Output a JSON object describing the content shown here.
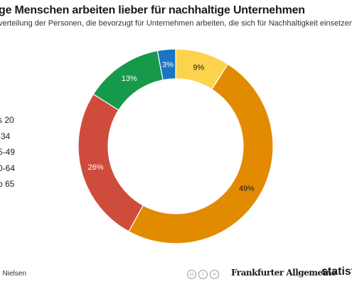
{
  "header": {
    "title": "ge Menschen arbeiten lieber für nachhaltige Unternehmen",
    "subtitle": "verteilung der Personen, die bevorzugt für Unternehmen arbeiten, die sich für Nachhaltigkeit einsetzen"
  },
  "footer": {
    "source": ": Nielsen",
    "cc_icons": [
      "cc-icon",
      "by-icon",
      "equals-icon"
    ],
    "faz_logo": "Frankfurter Allgemeine",
    "statista_logo": "statist"
  },
  "chart_data": {
    "type": "pie",
    "style": "donut",
    "title": "ge Menschen arbeiten lieber für nachhaltige Unternehmen",
    "categories": [
      "s 20",
      "-34",
      "5-49",
      "0-64",
      "b 65"
    ],
    "slices": [
      {
        "label": "9%",
        "value": 9,
        "color": "#fcd34d"
      },
      {
        "label": "49%",
        "value": 49,
        "color": "#e38b00"
      },
      {
        "label": "26%",
        "value": 26,
        "color": "#cf4c3c"
      },
      {
        "label": "13%",
        "value": 13,
        "color": "#16994b"
      },
      {
        "label": "3%",
        "value": 3,
        "color": "#1b74c4"
      }
    ],
    "legend_placement": "left"
  }
}
